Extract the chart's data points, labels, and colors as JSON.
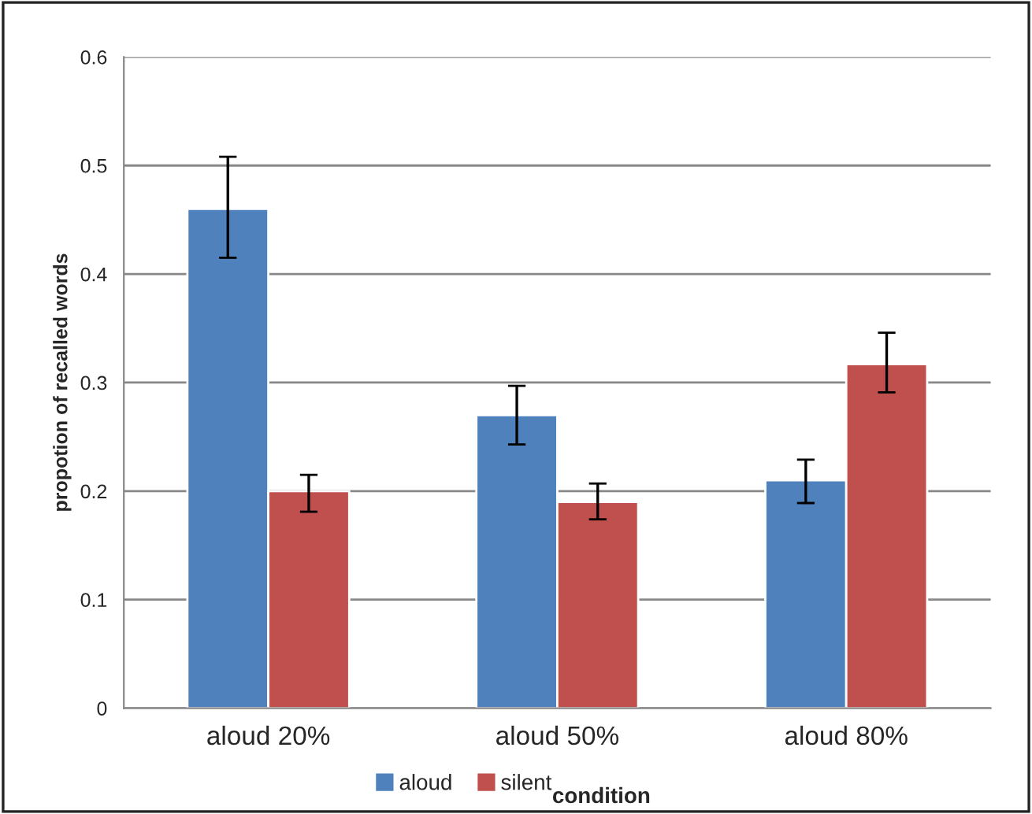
{
  "chart_data": {
    "type": "bar",
    "xlabel": "condition",
    "ylabel": "propotion of recalled words",
    "categories": [
      "aloud 20%",
      "aloud 50%",
      "aloud 80%"
    ],
    "series": [
      {
        "name": "aloud",
        "color": "#4f81bd",
        "values": [
          0.46,
          0.27,
          0.21
        ],
        "errors": [
          [
            0.415,
            0.508
          ],
          [
            0.243,
            0.297
          ],
          [
            0.189,
            0.229
          ]
        ]
      },
      {
        "name": "silent",
        "color": "#c0504d",
        "values": [
          0.2,
          0.19,
          0.317
        ],
        "errors": [
          [
            0.181,
            0.215
          ],
          [
            0.174,
            0.207
          ],
          [
            0.291,
            0.346
          ]
        ]
      }
    ],
    "ylim": [
      0,
      0.6
    ],
    "yticks": [
      0,
      0.1,
      0.2,
      0.3,
      0.4,
      0.5,
      0.6
    ],
    "grid": "y",
    "legend": "bottom"
  }
}
